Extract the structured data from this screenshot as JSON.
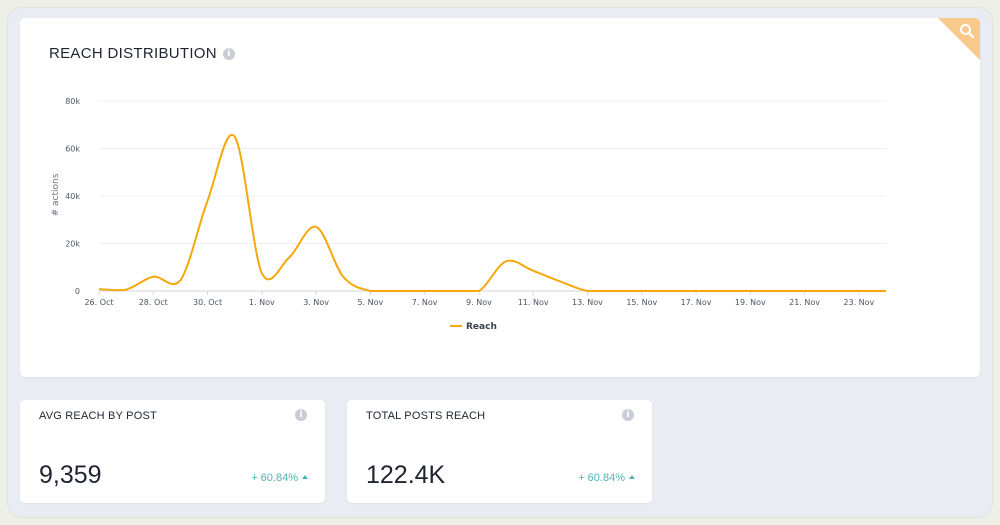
{
  "reach_card": {
    "title": "REACH DISTRIBUTION",
    "icons": {
      "info": "info-icon",
      "corner": "search-icon"
    },
    "accent_color": "#f8c98a"
  },
  "chart_data": {
    "type": "line",
    "ylabel": "# actions",
    "ylim": [
      0,
      80000
    ],
    "y_ticks": [
      0,
      20000,
      40000,
      60000,
      80000
    ],
    "y_tick_labels": [
      "0",
      "20k",
      "40k",
      "60k",
      "80k"
    ],
    "x_tick_labels": [
      "26. Oct",
      "28. Oct",
      "30. Oct",
      "1. Nov",
      "3. Nov",
      "5. Nov",
      "7. Nov",
      "9. Nov",
      "11. Nov",
      "13. Nov",
      "15. Nov",
      "17. Nov",
      "19. Nov",
      "21. Nov",
      "23. Nov"
    ],
    "x": [
      "26 Oct",
      "27 Oct",
      "28 Oct",
      "29 Oct",
      "30 Oct",
      "31 Oct",
      "1 Nov",
      "2 Nov",
      "3 Nov",
      "4 Nov",
      "5 Nov",
      "6 Nov",
      "7 Nov",
      "8 Nov",
      "9 Nov",
      "10 Nov",
      "11 Nov",
      "12 Nov",
      "13 Nov",
      "14 Nov",
      "15 Nov",
      "16 Nov",
      "17 Nov",
      "18 Nov",
      "19 Nov",
      "20 Nov",
      "21 Nov",
      "22 Nov",
      "23 Nov",
      "24 Nov"
    ],
    "series": [
      {
        "name": "Reach",
        "color": "#f5a80b",
        "values": [
          800,
          600,
          6000,
          4500,
          38000,
          65000,
          7500,
          14000,
          27000,
          6000,
          0,
          0,
          0,
          0,
          0,
          12500,
          8500,
          4000,
          0,
          0,
          0,
          0,
          0,
          0,
          0,
          0,
          0,
          0,
          0,
          0
        ]
      }
    ],
    "legend": "bottom-center",
    "grid": true
  },
  "stats": [
    {
      "label": "AVG REACH BY POST",
      "value": "9,359",
      "change": "+ 60.84%",
      "trend": "up"
    },
    {
      "label": "TOTAL POSTS REACH",
      "value": "122.4K",
      "change": "+ 60.84%",
      "trend": "up"
    }
  ],
  "trend_color": "#4fb3b4"
}
